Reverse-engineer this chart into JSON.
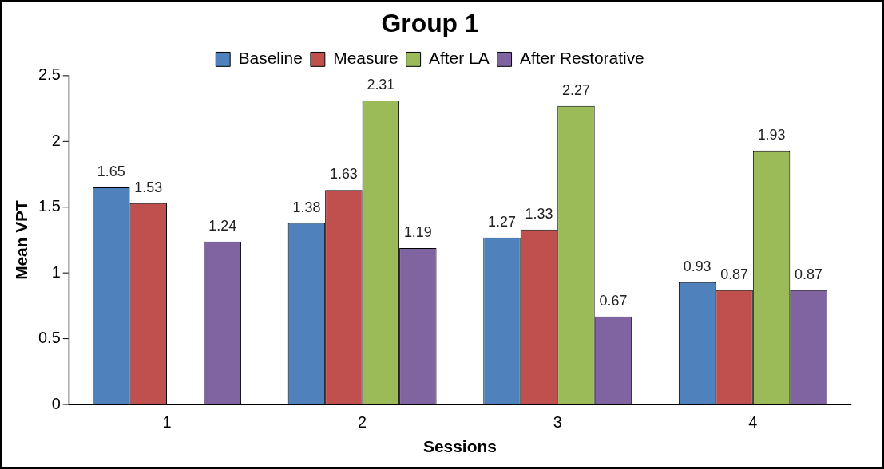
{
  "chart_data": {
    "type": "bar",
    "title": "Group 1",
    "xlabel": "Sessions",
    "ylabel": "Mean VPT",
    "categories": [
      "1",
      "2",
      "3",
      "4"
    ],
    "series": [
      {
        "name": "Baseline",
        "color": "#4f81bd",
        "values": [
          1.65,
          1.38,
          1.27,
          0.93
        ]
      },
      {
        "name": "Measure",
        "color": "#c0504d",
        "values": [
          1.53,
          1.63,
          1.33,
          0.87
        ]
      },
      {
        "name": "After LA",
        "color": "#9bbb59",
        "values": [
          null,
          2.31,
          2.27,
          1.93
        ]
      },
      {
        "name": "After Restorative",
        "color": "#8064a2",
        "values": [
          1.24,
          1.19,
          0.67,
          0.87
        ]
      }
    ],
    "ylim": [
      0,
      2.5
    ],
    "yticks": [
      0,
      0.5,
      1,
      1.5,
      2,
      2.5
    ],
    "grid": false,
    "legend": "top",
    "data_labels": true
  }
}
